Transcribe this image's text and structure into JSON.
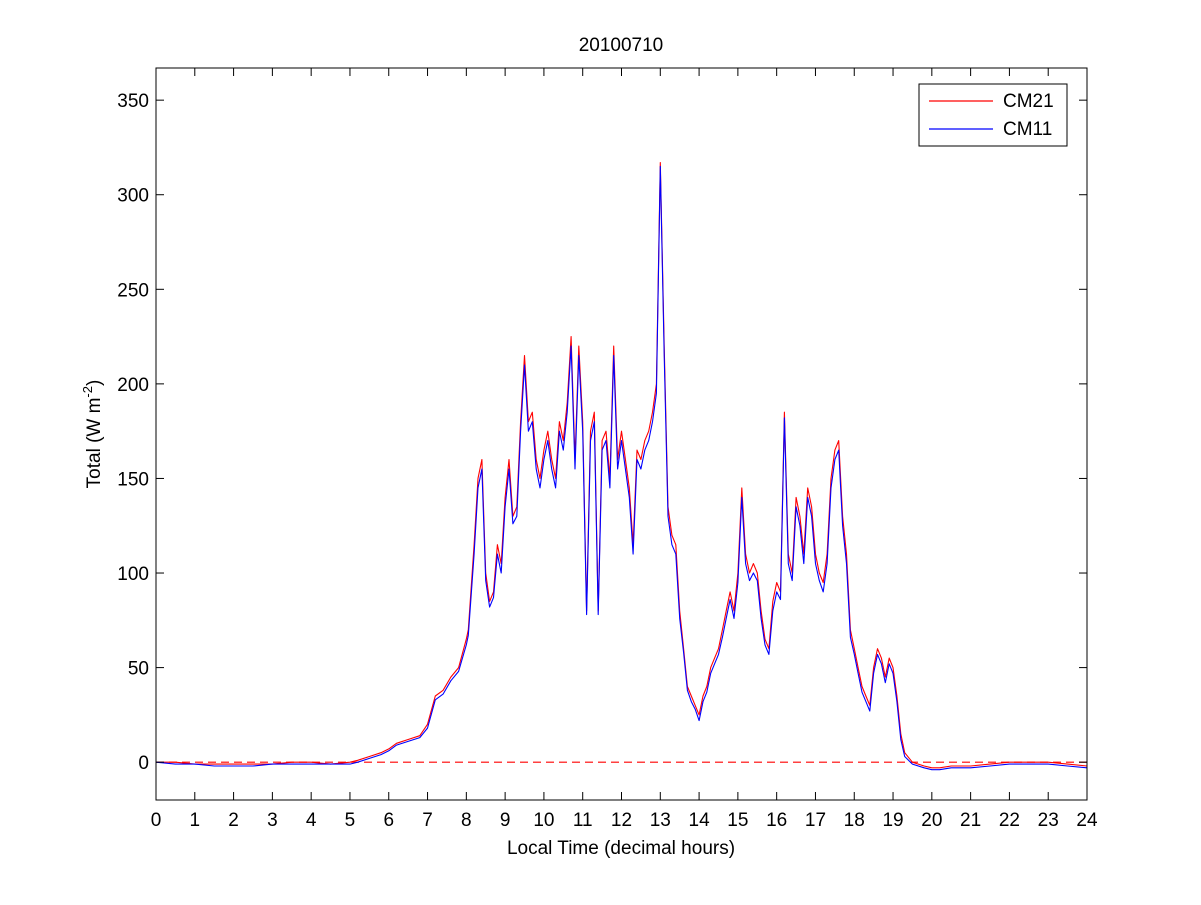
{
  "chart_data": {
    "type": "line",
    "title": "20100710",
    "xlabel": "Local Time (decimal hours)",
    "ylabel": "Total (W m-2)",
    "ylabel_parts": {
      "pre": "Total (W m",
      "sup": "-2",
      "post": ")"
    },
    "xlim": [
      0,
      24
    ],
    "ylim": [
      -20,
      367
    ],
    "xticks": [
      "0",
      "1",
      "2",
      "3",
      "4",
      "5",
      "6",
      "7",
      "8",
      "9",
      "10",
      "11",
      "12",
      "13",
      "14",
      "15",
      "16",
      "17",
      "18",
      "19",
      "20",
      "21",
      "22",
      "23",
      "24"
    ],
    "yticks": [
      "0",
      "50",
      "100",
      "150",
      "200",
      "250",
      "300",
      "350"
    ],
    "grid": false,
    "legend_position": "top-right",
    "reference_line": {
      "y": 0,
      "color": "#ff0000",
      "style": "dashed"
    },
    "colors": {
      "CM21": "#ff0000",
      "CM11": "#0000ff"
    },
    "series": [
      {
        "name": "CM21",
        "color": "#ff0000",
        "x": [
          0,
          0.5,
          1,
          1.5,
          2,
          2.5,
          3,
          3.5,
          4,
          4.5,
          5,
          5.2,
          5.5,
          5.8,
          6,
          6.2,
          6.5,
          6.8,
          7,
          7.2,
          7.4,
          7.6,
          7.8,
          8,
          8.05,
          8.2,
          8.3,
          8.4,
          8.5,
          8.6,
          8.7,
          8.8,
          8.9,
          9,
          9.1,
          9.2,
          9.3,
          9.4,
          9.5,
          9.6,
          9.7,
          9.8,
          9.9,
          10,
          10.1,
          10.2,
          10.3,
          10.4,
          10.5,
          10.6,
          10.7,
          10.8,
          10.9,
          11,
          11.1,
          11.2,
          11.3,
          11.4,
          11.5,
          11.6,
          11.7,
          11.8,
          11.9,
          12,
          12.1,
          12.2,
          12.3,
          12.4,
          12.5,
          12.6,
          12.7,
          12.8,
          12.9,
          13,
          13.1,
          13.2,
          13.3,
          13.4,
          13.5,
          13.6,
          13.7,
          13.8,
          13.9,
          14,
          14.1,
          14.2,
          14.3,
          14.4,
          14.5,
          14.6,
          14.7,
          14.8,
          14.9,
          15,
          15.1,
          15.2,
          15.3,
          15.4,
          15.5,
          15.6,
          15.7,
          15.8,
          15.9,
          16,
          16.1,
          16.2,
          16.3,
          16.4,
          16.5,
          16.6,
          16.7,
          16.8,
          16.9,
          17,
          17.1,
          17.2,
          17.3,
          17.4,
          17.5,
          17.6,
          17.7,
          17.8,
          17.9,
          18,
          18.1,
          18.2,
          18.3,
          18.4,
          18.5,
          18.6,
          18.7,
          18.8,
          18.9,
          19,
          19.1,
          19.2,
          19.3,
          19.5,
          19.8,
          20,
          20.2,
          20.5,
          21,
          21.5,
          22,
          22.5,
          23,
          23.5,
          24
        ],
        "y": [
          0,
          0,
          -1,
          -1,
          -1,
          -1,
          -1,
          0,
          0,
          -1,
          0,
          1,
          3,
          5,
          7,
          10,
          12,
          14,
          20,
          35,
          38,
          45,
          50,
          65,
          70,
          115,
          150,
          160,
          100,
          85,
          90,
          115,
          105,
          140,
          160,
          130,
          135,
          180,
          215,
          180,
          185,
          160,
          150,
          165,
          175,
          160,
          150,
          180,
          170,
          190,
          225,
          160,
          220,
          180,
          80,
          175,
          185,
          80,
          170,
          175,
          150,
          220,
          160,
          175,
          160,
          145,
          115,
          165,
          160,
          170,
          175,
          185,
          200,
          317,
          220,
          135,
          120,
          115,
          80,
          60,
          40,
          35,
          30,
          25,
          35,
          40,
          50,
          55,
          60,
          70,
          80,
          90,
          80,
          100,
          145,
          110,
          100,
          105,
          100,
          80,
          65,
          60,
          85,
          95,
          90,
          185,
          110,
          100,
          140,
          130,
          110,
          145,
          135,
          110,
          100,
          95,
          110,
          150,
          165,
          170,
          130,
          110,
          70,
          60,
          50,
          40,
          35,
          30,
          50,
          60,
          55,
          45,
          55,
          50,
          35,
          15,
          5,
          0,
          -2,
          -3,
          -3,
          -2,
          -2,
          -1,
          0,
          0,
          0,
          -1,
          -2
        ]
      },
      {
        "name": "CM11",
        "color": "#0000ff",
        "x": [
          0,
          0.5,
          1,
          1.5,
          2,
          2.5,
          3,
          3.5,
          4,
          4.5,
          5,
          5.2,
          5.5,
          5.8,
          6,
          6.2,
          6.5,
          6.8,
          7,
          7.2,
          7.4,
          7.6,
          7.8,
          8,
          8.05,
          8.2,
          8.3,
          8.4,
          8.5,
          8.6,
          8.7,
          8.8,
          8.9,
          9,
          9.1,
          9.2,
          9.3,
          9.4,
          9.5,
          9.6,
          9.7,
          9.8,
          9.9,
          10,
          10.1,
          10.2,
          10.3,
          10.4,
          10.5,
          10.6,
          10.7,
          10.8,
          10.9,
          11,
          11.1,
          11.2,
          11.3,
          11.4,
          11.5,
          11.6,
          11.7,
          11.8,
          11.9,
          12,
          12.1,
          12.2,
          12.3,
          12.4,
          12.5,
          12.6,
          12.7,
          12.8,
          12.9,
          13,
          13.1,
          13.2,
          13.3,
          13.4,
          13.5,
          13.6,
          13.7,
          13.8,
          13.9,
          14,
          14.1,
          14.2,
          14.3,
          14.4,
          14.5,
          14.6,
          14.7,
          14.8,
          14.9,
          15,
          15.1,
          15.2,
          15.3,
          15.4,
          15.5,
          15.6,
          15.7,
          15.8,
          15.9,
          16,
          16.1,
          16.2,
          16.3,
          16.4,
          16.5,
          16.6,
          16.7,
          16.8,
          16.9,
          17,
          17.1,
          17.2,
          17.3,
          17.4,
          17.5,
          17.6,
          17.7,
          17.8,
          17.9,
          18,
          18.1,
          18.2,
          18.3,
          18.4,
          18.5,
          18.6,
          18.7,
          18.8,
          18.9,
          19,
          19.1,
          19.2,
          19.3,
          19.5,
          19.8,
          20,
          20.2,
          20.5,
          21,
          21.5,
          22,
          22.5,
          23,
          23.5,
          24
        ],
        "y": [
          0,
          -1,
          -1,
          -2,
          -2,
          -2,
          -1,
          -1,
          -1,
          -1,
          -1,
          0,
          2,
          4,
          6,
          9,
          11,
          13,
          18,
          33,
          36,
          43,
          48,
          62,
          67,
          110,
          145,
          155,
          96,
          82,
          87,
          110,
          100,
          135,
          155,
          126,
          130,
          175,
          210,
          175,
          180,
          155,
          145,
          160,
          170,
          155,
          145,
          175,
          165,
          185,
          220,
          155,
          215,
          175,
          78,
          170,
          180,
          78,
          165,
          170,
          145,
          215,
          155,
          170,
          155,
          140,
          110,
          160,
          155,
          165,
          170,
          180,
          195,
          315,
          215,
          130,
          115,
          110,
          76,
          58,
          38,
          32,
          28,
          22,
          32,
          37,
          47,
          52,
          57,
          66,
          76,
          86,
          76,
          95,
          140,
          105,
          96,
          100,
          96,
          76,
          62,
          57,
          80,
          90,
          86,
          182,
          105,
          96,
          135,
          125,
          105,
          140,
          130,
          105,
          96,
          90,
          105,
          145,
          160,
          165,
          125,
          105,
          66,
          57,
          47,
          37,
          32,
          27,
          47,
          57,
          52,
          42,
          52,
          47,
          32,
          12,
          3,
          -1,
          -3,
          -4,
          -4,
          -3,
          -3,
          -2,
          -1,
          -1,
          -1,
          -2,
          -3
        ]
      }
    ]
  }
}
